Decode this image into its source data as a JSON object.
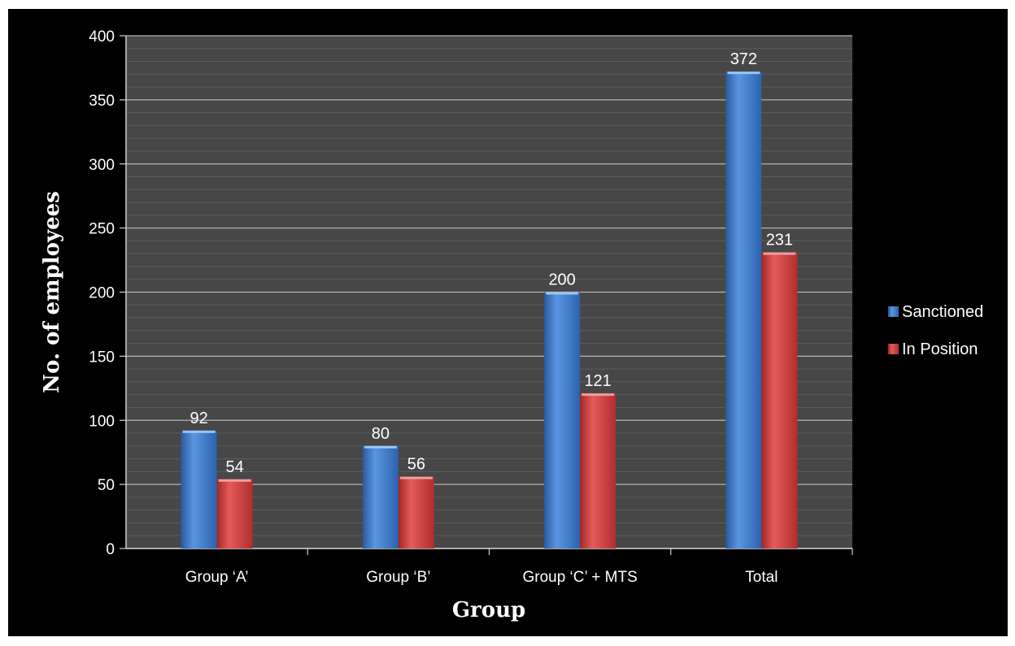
{
  "chart_data": {
    "type": "bar",
    "categories": [
      "Group ‘A’",
      "Group ‘B’",
      "Group ‘C’ + MTS",
      "Total"
    ],
    "series": [
      {
        "name": "Sanctioned",
        "values": [
          92,
          80,
          200,
          372
        ],
        "color": "#3c78c8"
      },
      {
        "name": "In Position",
        "values": [
          54,
          56,
          121,
          231
        ],
        "color": "#d23c3c"
      }
    ],
    "xlabel": "Group",
    "ylabel": "No. of employees",
    "ylim": [
      0,
      400
    ],
    "yticks": [
      "0",
      "50",
      "100",
      "150",
      "200",
      "250",
      "300",
      "350",
      "400"
    ],
    "grid": true,
    "legend_position": "right",
    "colors": {
      "background": "#000000",
      "plot_area": "#474747",
      "grid": "#b4b4b4",
      "text": "#ffffff"
    }
  }
}
